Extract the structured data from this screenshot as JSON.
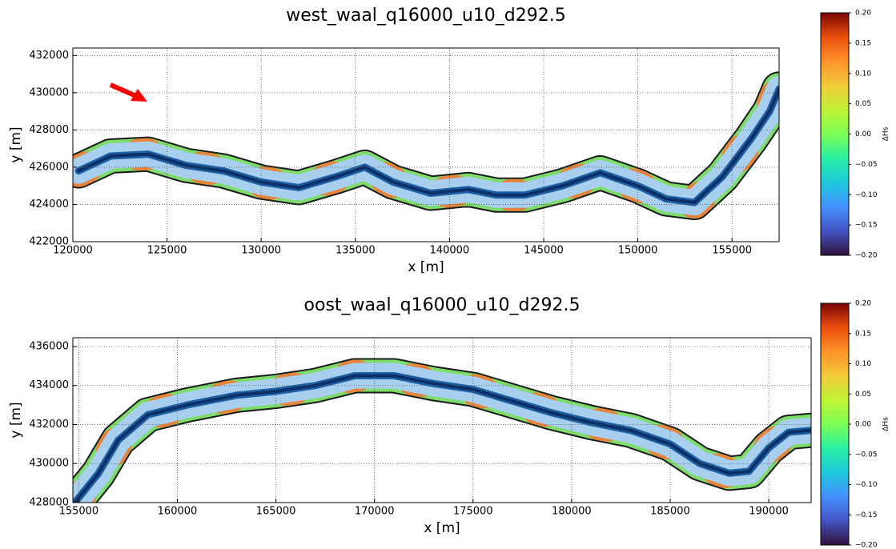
{
  "chart_data": [
    {
      "type": "river-map",
      "title": "west_waal_q16000_u10_d292.5",
      "xlabel": "x [m]",
      "ylabel": "y [m]",
      "xlim": [
        120000,
        157500
      ],
      "ylim": [
        422000,
        432400
      ],
      "xticks": [
        120000,
        125000,
        130000,
        135000,
        140000,
        145000,
        150000,
        155000
      ],
      "yticks": [
        422000,
        424000,
        426000,
        428000,
        430000,
        432000
      ],
      "grid": true,
      "x": [
        120300,
        122000,
        124000,
        126000,
        128000,
        130000,
        132000,
        134000,
        135500,
        137000,
        139000,
        141000,
        142500,
        144000,
        146000,
        148000,
        150000,
        151500,
        153000,
        154500,
        156000,
        157000,
        157500
      ],
      "y": [
        425800,
        426600,
        426700,
        426100,
        425800,
        425200,
        424900,
        425500,
        426000,
        425200,
        424600,
        424800,
        424500,
        424500,
        425000,
        425700,
        425000,
        424300,
        424100,
        425500,
        427500,
        429000,
        430200
      ],
      "colorbar_label": "ΔHs",
      "clim": [
        -0.2,
        0.2
      ],
      "cticks": [
        {
          "value": 0.2,
          "label": "0.20"
        },
        {
          "value": 0.15,
          "label": "0.15"
        },
        {
          "value": 0.1,
          "label": "0.10"
        },
        {
          "value": 0.05,
          "label": "0.05"
        },
        {
          "value": 0,
          "label": "0.00"
        },
        {
          "value": -0.05,
          "label": "−0.05"
        },
        {
          "value": -0.1,
          "label": "−0.10"
        },
        {
          "value": -0.15,
          "label": "−0.15"
        },
        {
          "value": -0.2,
          "label": "−0.20"
        }
      ]
    },
    {
      "type": "river-map",
      "title": "oost_waal_q16000_u10_d292.5",
      "xlabel": "x [m]",
      "ylabel": "y [m]",
      "xlim": [
        154700,
        192150
      ],
      "ylim": [
        428000,
        436450
      ],
      "xticks": [
        155000,
        160000,
        165000,
        170000,
        175000,
        180000,
        185000,
        190000
      ],
      "yticks": [
        428000,
        430000,
        432000,
        434000,
        436000
      ],
      "grid": true,
      "x": [
        154800,
        156000,
        157000,
        158500,
        160500,
        163000,
        165000,
        167000,
        169000,
        171000,
        173000,
        175000,
        177000,
        179000,
        181000,
        183000,
        185000,
        186500,
        188000,
        189000,
        190000,
        191000,
        192100
      ],
      "y": [
        428000,
        429500,
        431200,
        432500,
        433000,
        433500,
        433700,
        434000,
        434500,
        434500,
        434100,
        433800,
        433200,
        432600,
        432100,
        431700,
        431000,
        430000,
        429500,
        429600,
        430800,
        431600,
        431700
      ],
      "colorbar_label": "ΔHs",
      "clim": [
        -0.2,
        0.2
      ],
      "cticks": [
        {
          "value": 0.2,
          "label": "0.20"
        },
        {
          "value": 0.15,
          "label": "0.15"
        },
        {
          "value": 0.1,
          "label": "0.10"
        },
        {
          "value": 0.05,
          "label": "0.05"
        },
        {
          "value": 0,
          "label": "0.00"
        },
        {
          "value": -0.05,
          "label": "−0.05"
        },
        {
          "value": -0.1,
          "label": "−0.10"
        },
        {
          "value": -0.15,
          "label": "−0.15"
        },
        {
          "value": -0.2,
          "label": "−0.20"
        }
      ]
    }
  ]
}
